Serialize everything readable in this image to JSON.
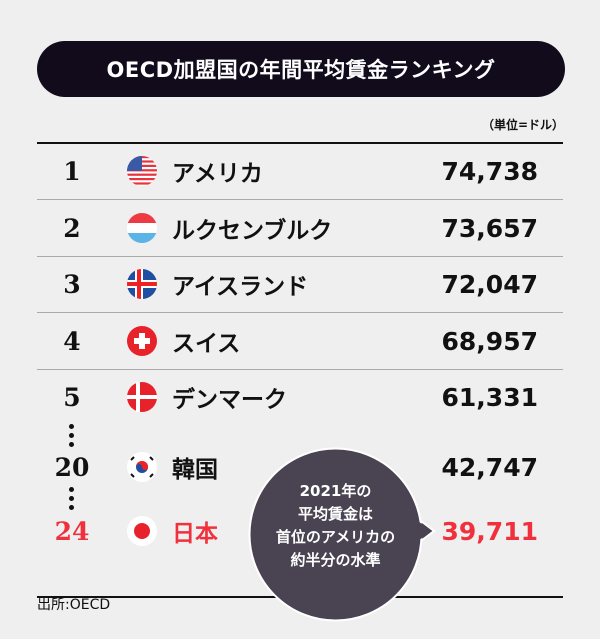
{
  "title": "OECD加盟国の年間平均賃金ランキング",
  "unit": "（単位=ドル）",
  "source": "出所:OECD",
  "colors": {
    "title_bg": "#110b1c",
    "highlight": "#f0303c",
    "bubble": "#4a4352"
  },
  "bubble": {
    "lines": [
      "2021年の",
      "平均賃金は",
      "首位のアメリカの",
      "約半分の水準"
    ]
  },
  "chart_data": {
    "type": "table",
    "title": "OECD加盟国の年間平均賃金ランキング",
    "unit": "（単位=ドル）",
    "columns": [
      "rank",
      "flag",
      "country",
      "value"
    ],
    "rows": [
      {
        "rank": "1",
        "flag": "us-flag-icon",
        "country": "アメリカ",
        "value": "74,738"
      },
      {
        "rank": "2",
        "flag": "luxembourg-flag-icon",
        "country": "ルクセンブルク",
        "value": "73,657"
      },
      {
        "rank": "3",
        "flag": "iceland-flag-icon",
        "country": "アイスランド",
        "value": "72,047"
      },
      {
        "rank": "4",
        "flag": "switzerland-flag-icon",
        "country": "スイス",
        "value": "68,957"
      },
      {
        "rank": "5",
        "flag": "denmark-flag-icon",
        "country": "デンマーク",
        "value": "61,331"
      },
      {
        "rank": "20",
        "flag": "korea-flag-icon",
        "country": "韓国",
        "value": "42,747"
      },
      {
        "rank": "24",
        "flag": "japan-flag-icon",
        "country": "日本",
        "value": "39,711",
        "highlight": true
      }
    ]
  }
}
